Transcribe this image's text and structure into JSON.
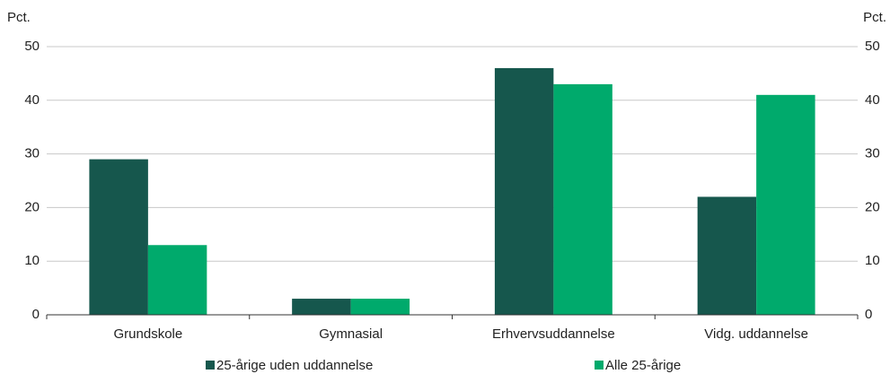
{
  "chart_data": {
    "type": "bar",
    "y_label": "Pct.",
    "y2_label": "Pct.",
    "categories": [
      "Grundskole",
      "Gymnasial",
      "Erhvervsuddannelse",
      "Vidg. uddannelse"
    ],
    "series": [
      {
        "name": "25-årige uden uddannelse",
        "color": "#16574d",
        "values": [
          29,
          3,
          46,
          22
        ]
      },
      {
        "name": "Alle 25-årige",
        "color": "#00aa6c",
        "values": [
          13,
          3,
          43,
          41
        ]
      }
    ],
    "ylim": [
      0,
      50
    ],
    "yticks": [
      0,
      10,
      20,
      30,
      40,
      50
    ],
    "y2lim": [
      0,
      50
    ],
    "y2ticks": [
      0,
      10,
      20,
      30,
      40,
      50
    ],
    "grid": true,
    "legend": "bottom"
  }
}
